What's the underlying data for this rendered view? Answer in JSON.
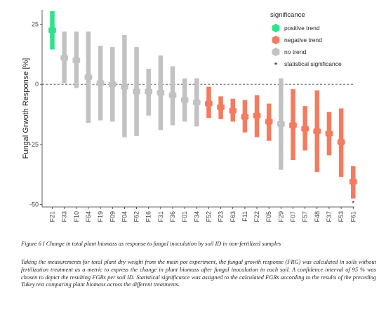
{
  "chart_data": {
    "type": "scatter",
    "ylabel": "Fungal Grwoth Response [%]",
    "xlabel": "",
    "ylim": [
      -51,
      31
    ],
    "yticks": [
      25,
      0,
      -25,
      -50
    ],
    "reference_line": 0,
    "grid": false,
    "legend_placement": "top-right",
    "categories": [
      "F21",
      "F33",
      "F10",
      "F64",
      "F19",
      "F09",
      "F04",
      "F62",
      "F16",
      "F31",
      "F36",
      "F01",
      "F34",
      "F52",
      "F23",
      "F63",
      "F11",
      "F22",
      "F05",
      "F29",
      "F07",
      "F57",
      "F48",
      "F37",
      "F53",
      "F61"
    ],
    "points": [
      {
        "id": "F21",
        "fgr": 22.5,
        "lower": 14.5,
        "upper": 30.5,
        "trend": "positive"
      },
      {
        "id": "F33",
        "fgr": 11.0,
        "lower": 0.5,
        "upper": 22.0,
        "trend": "none"
      },
      {
        "id": "F10",
        "fgr": 10.0,
        "lower": -1.5,
        "upper": 22.0,
        "trend": "none"
      },
      {
        "id": "F64",
        "fgr": 3.0,
        "lower": -16.0,
        "upper": 22.0,
        "trend": "none"
      },
      {
        "id": "F19",
        "fgr": 0.5,
        "lower": -15.0,
        "upper": 16.0,
        "trend": "none"
      },
      {
        "id": "F09",
        "fgr": 0.0,
        "lower": -15.5,
        "upper": 15.5,
        "trend": "none"
      },
      {
        "id": "F04",
        "fgr": -1.0,
        "lower": -22.0,
        "upper": 20.5,
        "trend": "none"
      },
      {
        "id": "F62",
        "fgr": -3.0,
        "lower": -21.5,
        "upper": 15.5,
        "trend": "none"
      },
      {
        "id": "F16",
        "fgr": -3.0,
        "lower": -13.0,
        "upper": 6.5,
        "trend": "none"
      },
      {
        "id": "F31",
        "fgr": -3.5,
        "lower": -19.0,
        "upper": 12.0,
        "trend": "none"
      },
      {
        "id": "F36",
        "fgr": -4.5,
        "lower": -17.0,
        "upper": 7.5,
        "trend": "none"
      },
      {
        "id": "F01",
        "fgr": -6.5,
        "lower": -15.5,
        "upper": 2.5,
        "trend": "none"
      },
      {
        "id": "F34",
        "fgr": -7.5,
        "lower": -17.5,
        "upper": 2.5,
        "trend": "none"
      },
      {
        "id": "F52",
        "fgr": -8.0,
        "lower": -14.0,
        "upper": -1.0,
        "trend": "negative"
      },
      {
        "id": "F23",
        "fgr": -9.5,
        "lower": -14.5,
        "upper": -5.0,
        "trend": "negative"
      },
      {
        "id": "F63",
        "fgr": -11.0,
        "lower": -15.5,
        "upper": -6.0,
        "trend": "negative"
      },
      {
        "id": "F11",
        "fgr": -13.5,
        "lower": -20.0,
        "upper": -6.5,
        "trend": "negative"
      },
      {
        "id": "F22",
        "fgr": -13.0,
        "lower": -22.0,
        "upper": -4.5,
        "trend": "negative"
      },
      {
        "id": "F05",
        "fgr": -15.5,
        "lower": -23.5,
        "upper": -8.0,
        "trend": "negative"
      },
      {
        "id": "F29",
        "fgr": -16.5,
        "lower": -35.5,
        "upper": 2.5,
        "trend": "none"
      },
      {
        "id": "F07",
        "fgr": -17.0,
        "lower": -31.5,
        "upper": -2.0,
        "trend": "negative"
      },
      {
        "id": "F57",
        "fgr": -18.5,
        "lower": -27.5,
        "upper": -9.0,
        "trend": "negative"
      },
      {
        "id": "F48",
        "fgr": -19.5,
        "lower": -36.5,
        "upper": -2.5,
        "trend": "negative"
      },
      {
        "id": "F37",
        "fgr": -20.5,
        "lower": -29.5,
        "upper": -11.5,
        "trend": "negative"
      },
      {
        "id": "F53",
        "fgr": -24.0,
        "lower": -38.5,
        "upper": -10.0,
        "trend": "negative"
      },
      {
        "id": "F61",
        "fgr": -40.5,
        "lower": -47.5,
        "upper": -34.0,
        "trend": "negative",
        "significant": true
      }
    ],
    "legend": {
      "title": "significance",
      "entries": [
        {
          "key": "positive",
          "label": "positive trend",
          "color": "#2ee38a",
          "shape": "hexagon"
        },
        {
          "key": "negative",
          "label": "negative trend",
          "color": "#f57b5f",
          "shape": "hexagon"
        },
        {
          "key": "none",
          "label": "no trend",
          "color": "#c2c2c2",
          "shape": "hexagon"
        },
        {
          "key": "significant",
          "label": "statistical significance",
          "symbol": "*",
          "shape": "star"
        }
      ]
    },
    "colors": {
      "positive": "#2ee38a",
      "negative": "#f57b5f",
      "none": "#c2c2c2"
    }
  },
  "caption": {
    "title": "Figure 6 I Change in total plant biomass as response to fungal inoculation by soil ID in non-fertilized samples",
    "body": "Taking the measurements for total plant dry weight from the main pot experiment, the fungal growth response (FRG) was calculated in soils without fertilization treatment as a metric to express the change in plant biomass after fungal inoculation in each soil. A confidence interval of 95 % was chosen to depict the resulting FGRs per soil ID. Statistical significance was assigned to the calculated FGRs according to the results of the preceding Tukey test comparing plant biomass across the different treatments."
  }
}
